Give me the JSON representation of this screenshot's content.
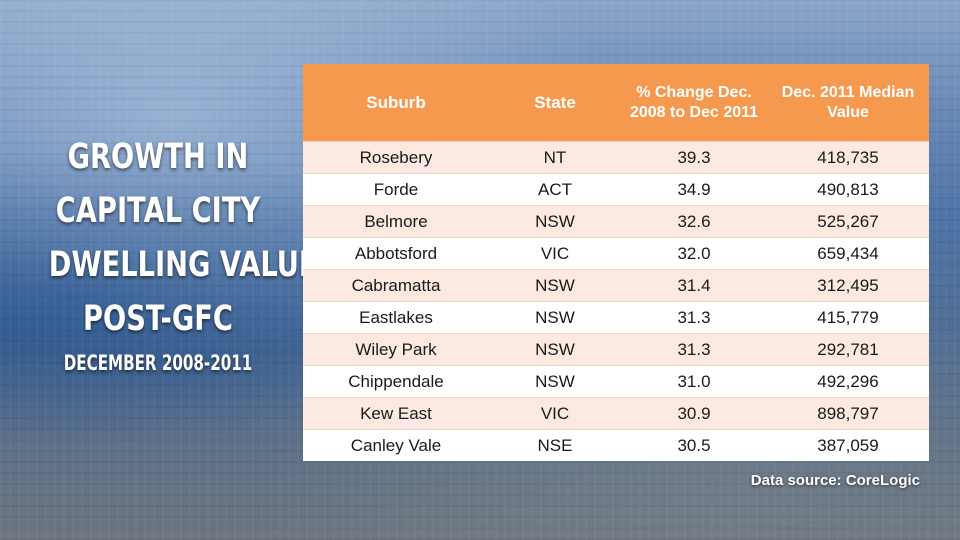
{
  "title": {
    "lines": [
      "GROWTH IN",
      "CAPITAL CITY",
      "DWELLING VALUES",
      "POST-GFC"
    ],
    "subtitle": "DECEMBER 2008-2011"
  },
  "table": {
    "headers": [
      "Suburb",
      "State",
      "% Change Dec. 2008 to Dec 2011",
      "Dec. 2011 Median Value"
    ],
    "rows": [
      [
        "Rosebery",
        "NT",
        "39.3",
        "418,735"
      ],
      [
        "Forde",
        "ACT",
        "34.9",
        "490,813"
      ],
      [
        "Belmore",
        "NSW",
        "32.6",
        "525,267"
      ],
      [
        "Abbotsford",
        "VIC",
        "32.0",
        "659,434"
      ],
      [
        "Cabramatta",
        "NSW",
        "31.4",
        "312,495"
      ],
      [
        "Eastlakes",
        "NSW",
        "31.3",
        "415,779"
      ],
      [
        "Wiley Park",
        "NSW",
        "31.3",
        "292,781"
      ],
      [
        "Chippendale",
        "NSW",
        "31.0",
        "492,296"
      ],
      [
        "Kew East",
        "VIC",
        "30.9",
        "898,797"
      ],
      [
        "Canley Vale",
        "NSE",
        "30.5",
        "387,059"
      ]
    ]
  },
  "source": "Data source: CoreLogic",
  "colors": {
    "header": "#f5994f",
    "row_alt": "#fbe9e2",
    "row": "#ffffff",
    "title_text": "#ffffff"
  }
}
